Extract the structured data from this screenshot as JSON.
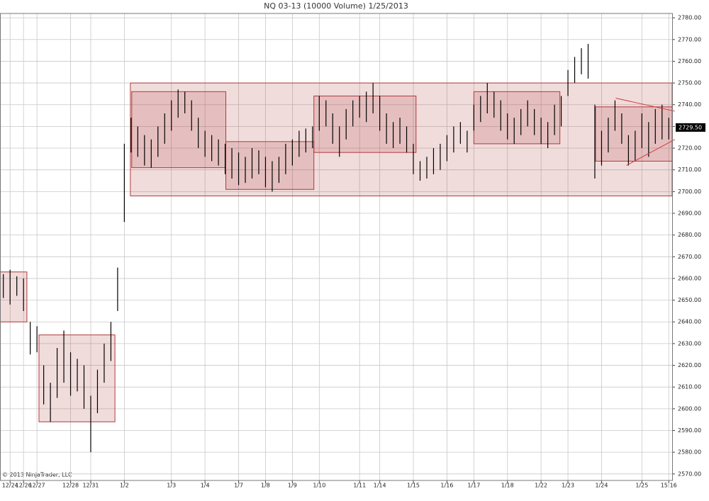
{
  "chart_data": {
    "type": "ohlc",
    "title": "NQ 03-13 (10000 Volume)  1/25/2013",
    "copyright": "© 2013 NinjaTrader, LLC",
    "color": "#000000",
    "categories": [
      null,
      "12/24",
      null,
      "12/26",
      null,
      "12/27",
      null,
      null,
      null,
      null,
      "12/28",
      null,
      null,
      "12/31",
      null,
      null,
      null,
      null,
      "1/2",
      null,
      null,
      null,
      null,
      null,
      null,
      "1/3",
      null,
      null,
      null,
      null,
      "1/4",
      null,
      null,
      null,
      null,
      "1/7",
      null,
      null,
      null,
      "1/8",
      null,
      null,
      null,
      "1/9",
      null,
      null,
      null,
      "1/10",
      null,
      null,
      null,
      null,
      null,
      "1/11",
      null,
      null,
      "1/14",
      null,
      null,
      null,
      null,
      "1/15",
      null,
      null,
      null,
      null,
      "1/16",
      null,
      null,
      null,
      "1/17",
      null,
      null,
      null,
      null,
      "1/18",
      null,
      null,
      null,
      null,
      "1/22",
      null,
      null,
      null,
      "1/23",
      null,
      null,
      null,
      null,
      "1/24",
      null,
      null,
      null,
      null,
      null,
      "1/25",
      null,
      null,
      null,
      "15:16"
    ],
    "high": [
      2662,
      2664,
      2661,
      2660,
      2640,
      2638,
      2620,
      2612,
      2628,
      2636,
      2626,
      2623,
      2620,
      2606,
      2618,
      2630,
      2640,
      2665,
      2722,
      2734,
      2730,
      2726,
      2724,
      2730,
      2736,
      2742,
      2747,
      2746,
      2742,
      2734,
      2728,
      2726,
      2724,
      2722,
      2720,
      2718,
      2716,
      2720,
      2719,
      2716,
      2714,
      2716,
      2722,
      2724,
      2728,
      2729,
      2730,
      2744,
      2742,
      2736,
      2730,
      2738,
      2742,
      2744,
      2746,
      2750,
      2744,
      2736,
      2732,
      2734,
      2730,
      2722,
      2714,
      2716,
      2720,
      2722,
      2726,
      2730,
      2732,
      2728,
      2740,
      2744,
      2750,
      2746,
      2742,
      2736,
      2734,
      2738,
      2742,
      2738,
      2734,
      2732,
      2740,
      2744,
      2756,
      2762,
      2766,
      2768,
      2740,
      2728,
      2734,
      2742,
      2736,
      2726,
      2728,
      2736,
      2732,
      2738,
      2740,
      2734
    ],
    "low": [
      2651,
      2648,
      2652,
      2645,
      2625,
      2626,
      2602,
      2594,
      2605,
      2612,
      2606,
      2608,
      2600,
      2580,
      2598,
      2612,
      2622,
      2645,
      2686,
      2718,
      2716,
      2712,
      2711,
      2716,
      2722,
      2728,
      2734,
      2736,
      2728,
      2720,
      2716,
      2714,
      2712,
      2708,
      2706,
      2703,
      2704,
      2706,
      2708,
      2702,
      2700,
      2704,
      2708,
      2712,
      2716,
      2718,
      2720,
      2728,
      2730,
      2722,
      2716,
      2724,
      2730,
      2734,
      2732,
      2736,
      2728,
      2722,
      2720,
      2722,
      2718,
      2708,
      2705,
      2706,
      2708,
      2710,
      2714,
      2718,
      2722,
      2718,
      2728,
      2732,
      2736,
      2734,
      2728,
      2724,
      2722,
      2726,
      2730,
      2726,
      2722,
      2720,
      2726,
      2730,
      2744,
      2750,
      2754,
      2752,
      2706,
      2712,
      2718,
      2728,
      2722,
      2712,
      2714,
      2720,
      2716,
      2722,
      2724,
      2724
    ],
    "rectangles": [
      {
        "from": 0,
        "to": 4,
        "low": 2640,
        "high": 2663
      },
      {
        "from": 5.8,
        "to": 17.1,
        "low": 2594,
        "high": 2634
      },
      {
        "from": 19.4,
        "to": 100,
        "low": 2698,
        "high": 2750
      },
      {
        "from": 19.6,
        "to": 33.6,
        "low": 2711,
        "high": 2746
      },
      {
        "from": 33.6,
        "to": 46.7,
        "low": 2701,
        "high": 2723
      },
      {
        "from": 46.7,
        "to": 61.9,
        "low": 2718,
        "high": 2744
      },
      {
        "from": 70.5,
        "to": 83.3,
        "low": 2722,
        "high": 2746
      },
      {
        "from": 88.6,
        "to": 100,
        "low": 2714,
        "high": 2739
      }
    ],
    "trend_lines": [
      {
        "x": [
          91.6,
          100.4
        ],
        "y": [
          2743,
          2737
        ]
      },
      {
        "x": [
          93.2,
          100.4
        ],
        "y": [
          2712,
          2724
        ]
      }
    ],
    "last_price": {
      "value": 2729.5,
      "label": "2729.50"
    },
    "ylim": [
      2567,
      2782
    ],
    "yticks": [
      {
        "value": 2570,
        "label": "2570.00"
      },
      {
        "value": 2580,
        "label": "2580.00"
      },
      {
        "value": 2590,
        "label": "2590.00"
      },
      {
        "value": 2600,
        "label": "2600.00"
      },
      {
        "value": 2610,
        "label": "2610.00"
      },
      {
        "value": 2620,
        "label": "2620.00"
      },
      {
        "value": 2630,
        "label": "2630.00"
      },
      {
        "value": 2640,
        "label": "2640.00"
      },
      {
        "value": 2650,
        "label": "2650.00"
      },
      {
        "value": 2660,
        "label": "2660.00"
      },
      {
        "value": 2670,
        "label": "2670.00"
      },
      {
        "value": 2680,
        "label": "2680.00"
      },
      {
        "value": 2690,
        "label": "2690.00"
      },
      {
        "value": 2700,
        "label": "2700.00"
      },
      {
        "value": 2710,
        "label": "2710.00"
      },
      {
        "value": 2720,
        "label": "2720.00"
      },
      {
        "value": 2730,
        "label": "2730.00"
      },
      {
        "value": 2740,
        "label": "2740.00"
      },
      {
        "value": 2750,
        "label": "2750.00"
      },
      {
        "value": 2760,
        "label": "2760.00"
      },
      {
        "value": 2770,
        "label": "2770.00"
      },
      {
        "value": 2780,
        "label": "2780.00"
      }
    ],
    "grid": true
  }
}
